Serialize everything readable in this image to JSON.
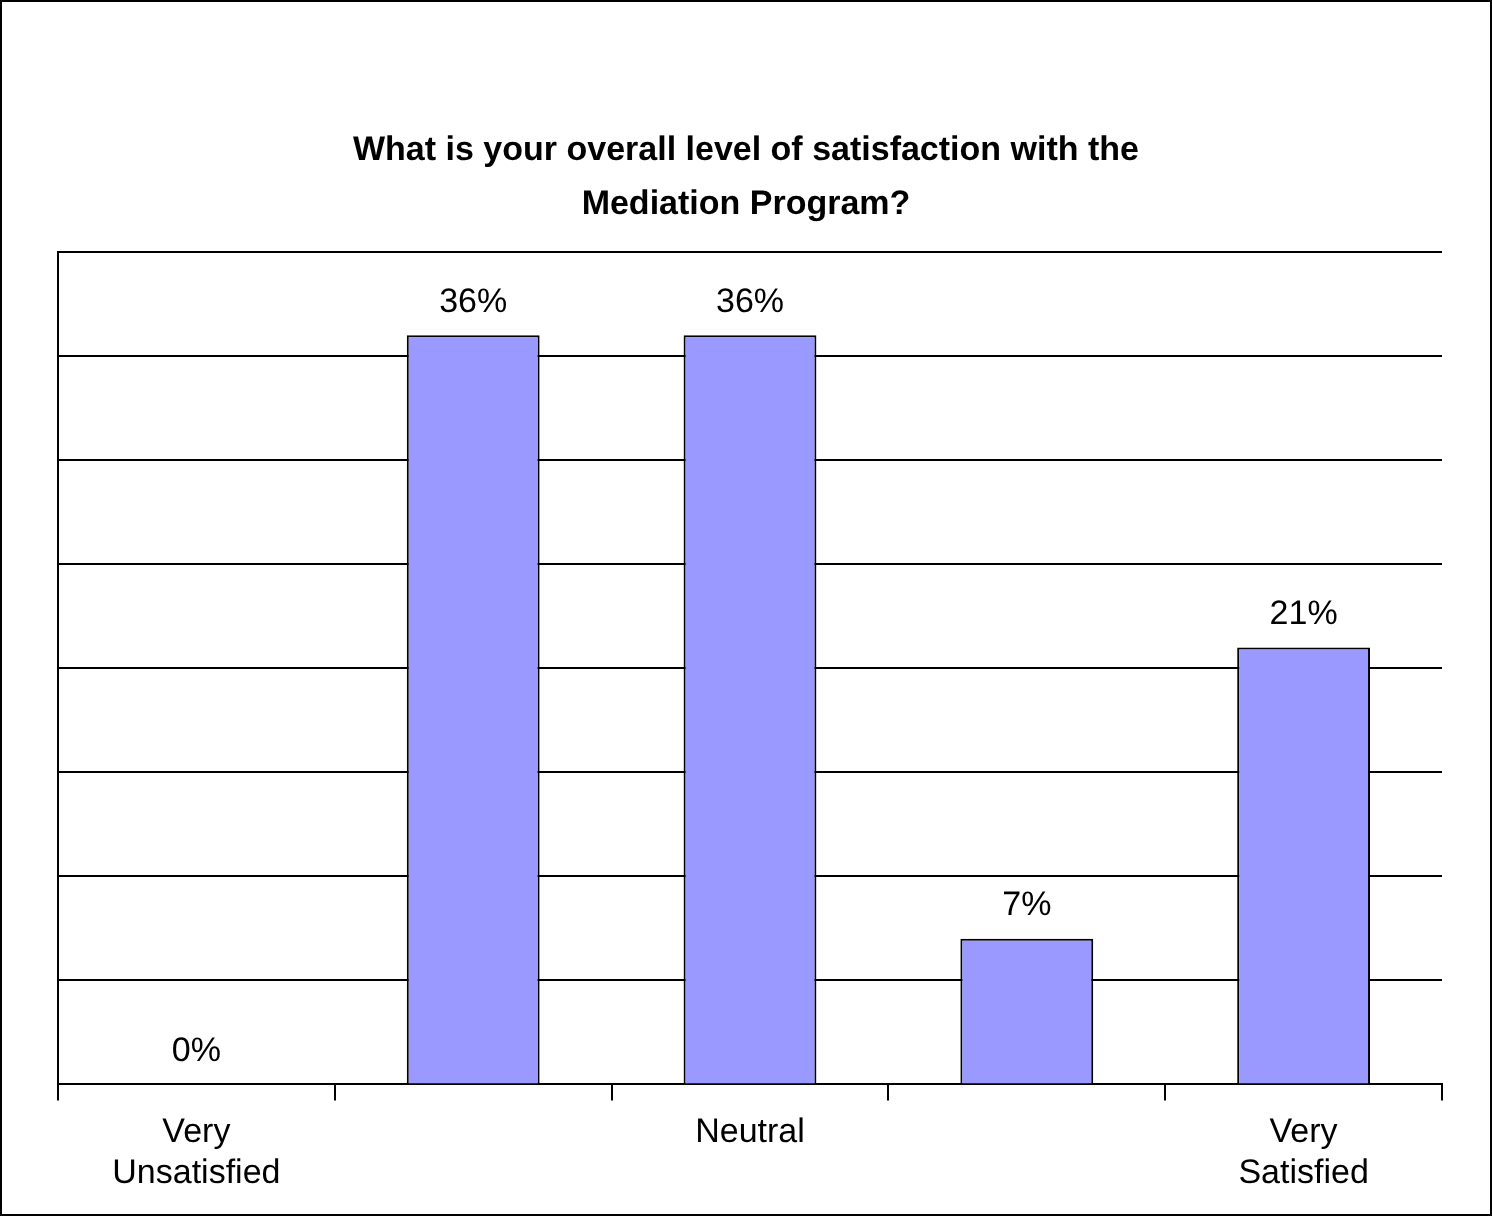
{
  "chart_data": {
    "type": "bar",
    "title": "What is your overall level of satisfaction with the Mediation Program?",
    "categories": [
      "Very Unsatisfied",
      null,
      "Neutral",
      null,
      "Very Satisfied"
    ],
    "values": [
      0,
      36,
      36,
      7,
      21
    ],
    "value_labels": [
      "0%",
      "36%",
      "36%",
      "7%",
      "21%"
    ],
    "color": "#9999ff",
    "ylim": [
      0,
      40
    ],
    "yticks": [
      {
        "value": 0,
        "label": null
      },
      {
        "value": 5,
        "label": null
      },
      {
        "value": 10,
        "label": null
      },
      {
        "value": 15,
        "label": null
      },
      {
        "value": 20,
        "label": null
      },
      {
        "value": 25,
        "label": null
      },
      {
        "value": 30,
        "label": null
      },
      {
        "value": 35,
        "label": null
      },
      {
        "value": 40,
        "label": null
      }
    ],
    "grid": "y",
    "tick_labels": "x",
    "legend": false
  }
}
